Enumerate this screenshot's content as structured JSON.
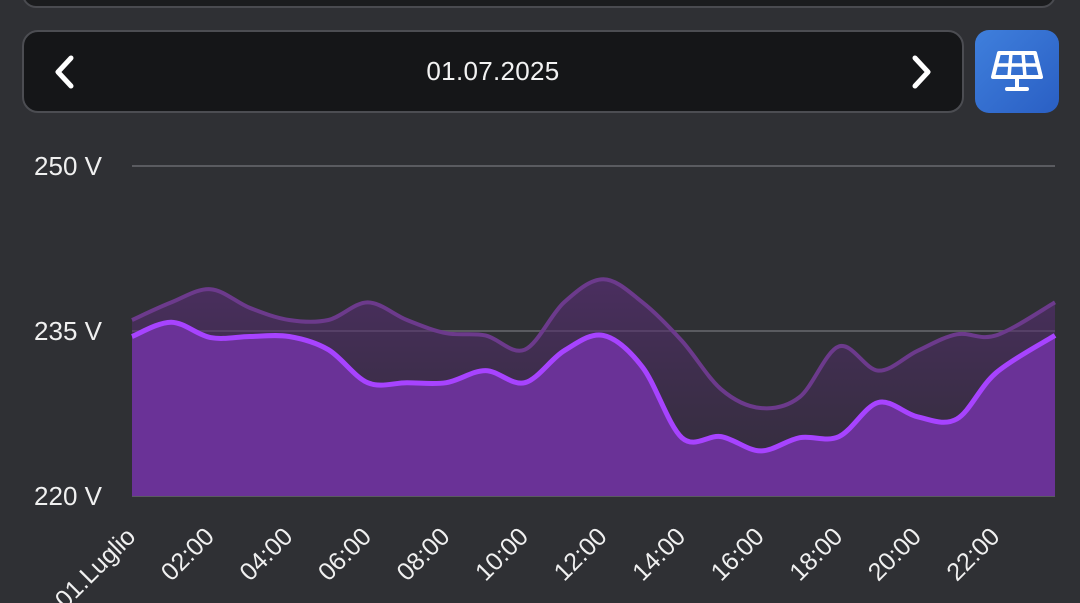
{
  "date_nav": {
    "date": "01.07.2025",
    "prev_icon": "chevron-left-icon",
    "next_icon": "chevron-right-icon"
  },
  "mode_button": {
    "icon": "solar-panel-icon",
    "color": "#3371d6"
  },
  "colors": {
    "background": "#2f3034",
    "series_primary": "#a743ff",
    "series_primary_fill": "#6a3297",
    "series_secondary": "#6c3a8c",
    "gridline": "#5a5b60"
  },
  "chart_data": {
    "type": "area",
    "ylim": [
      220,
      250
    ],
    "yticks": [
      {
        "value": 250,
        "label": "250 V"
      },
      {
        "value": 235,
        "label": "235 V"
      },
      {
        "value": 220,
        "label": "220 V"
      }
    ],
    "xlim": [
      0,
      23.5
    ],
    "xticks": [
      {
        "value": 0,
        "label": "01.Luglio"
      },
      {
        "value": 2,
        "label": "02:00"
      },
      {
        "value": 4,
        "label": "04:00"
      },
      {
        "value": 6,
        "label": "06:00"
      },
      {
        "value": 8,
        "label": "08:00"
      },
      {
        "value": 10,
        "label": "10:00"
      },
      {
        "value": 12,
        "label": "12:00"
      },
      {
        "value": 14,
        "label": "14:00"
      },
      {
        "value": 16,
        "label": "16:00"
      },
      {
        "value": 18,
        "label": "18:00"
      },
      {
        "value": 20,
        "label": "20:00"
      },
      {
        "value": 22,
        "label": "22:00"
      }
    ],
    "grid": true,
    "series": [
      {
        "x": [
          0,
          1,
          2,
          3,
          4,
          5,
          6,
          7,
          8,
          9,
          10,
          11,
          12,
          13,
          14,
          15,
          16,
          17,
          18,
          19,
          20,
          21,
          22,
          23.5
        ],
        "y": [
          236.0,
          237.6,
          238.8,
          237.1,
          236.0,
          236.0,
          237.6,
          236.0,
          234.8,
          234.6,
          233.3,
          237.6,
          239.7,
          237.6,
          234.1,
          229.7,
          228.0,
          229.0,
          233.6,
          231.4,
          233.2,
          234.7,
          234.6,
          237.6
        ]
      },
      {
        "x": [
          0,
          1,
          2,
          3,
          4,
          5,
          6,
          7,
          8,
          9,
          10,
          11,
          12,
          13,
          14,
          15,
          16,
          17,
          18,
          19,
          20,
          21,
          22,
          23.5
        ],
        "y": [
          234.5,
          235.8,
          234.4,
          234.5,
          234.5,
          233.3,
          230.3,
          230.3,
          230.3,
          231.4,
          230.3,
          233.2,
          234.6,
          231.7,
          225.3,
          225.4,
          224.1,
          225.3,
          225.4,
          228.5,
          227.2,
          227.0,
          231.2,
          234.6
        ]
      }
    ]
  }
}
